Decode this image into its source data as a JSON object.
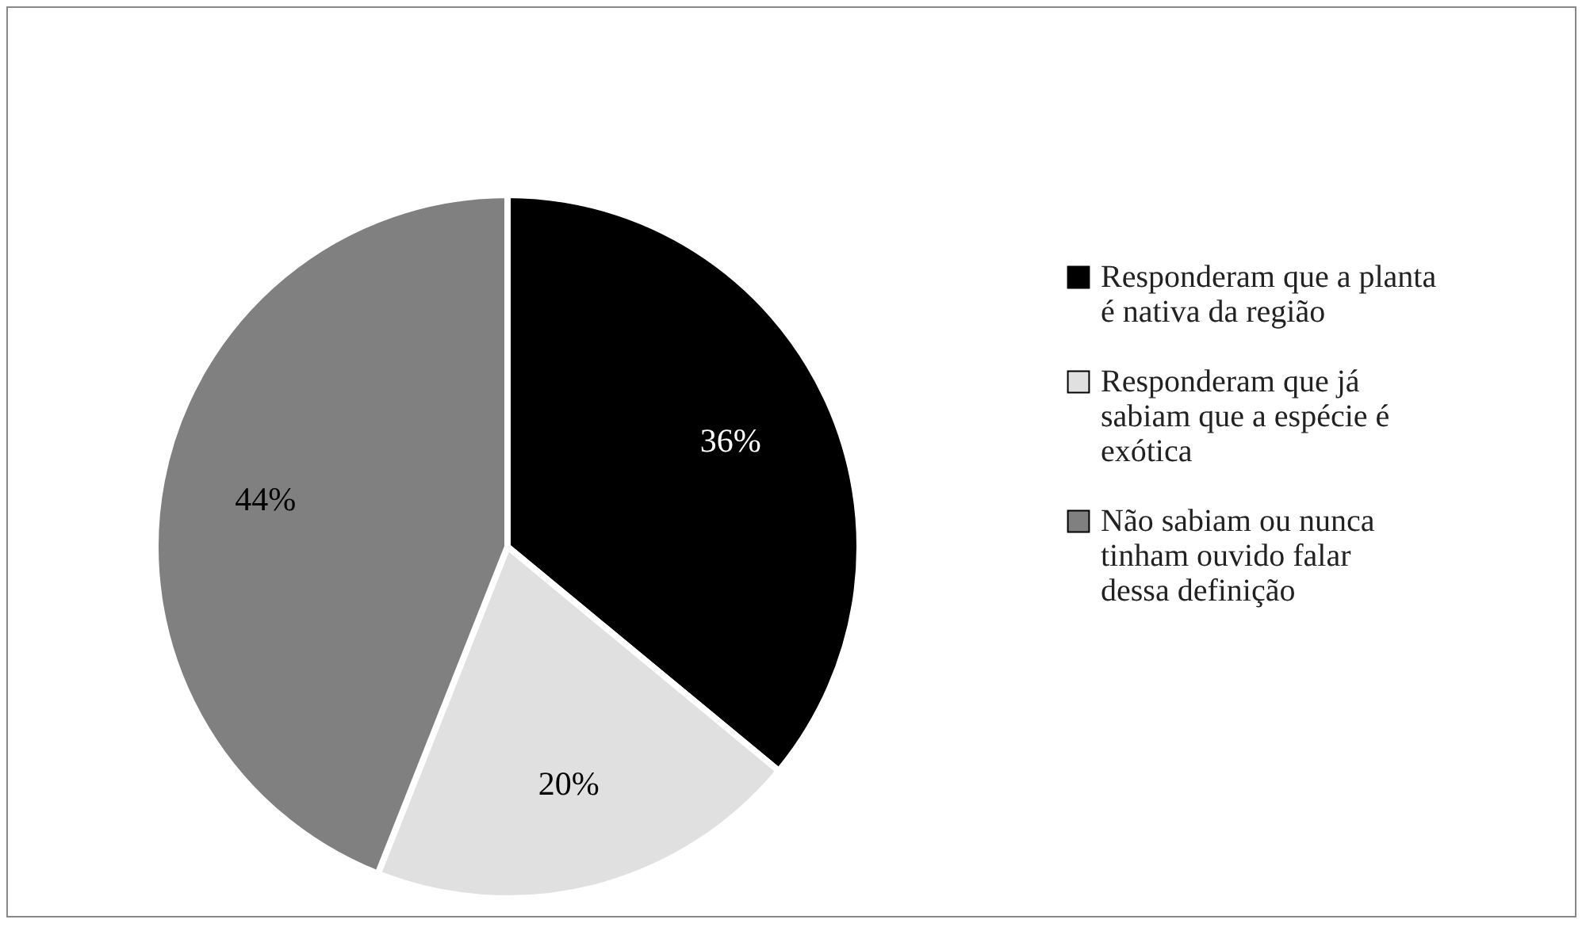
{
  "chart_data": {
    "type": "pie",
    "categories": [
      "Responderam que a planta é nativa da região",
      "Responderam que já sabiam que a espécie é exótica",
      "Não sabiam ou nunca tinham ouvido falar dessa definição"
    ],
    "values": [
      36,
      20,
      44
    ],
    "colors": [
      "#000000",
      "#e0e0e0",
      "#808080"
    ],
    "value_labels": [
      "36%",
      "20%",
      "44%"
    ],
    "legend": "right"
  }
}
